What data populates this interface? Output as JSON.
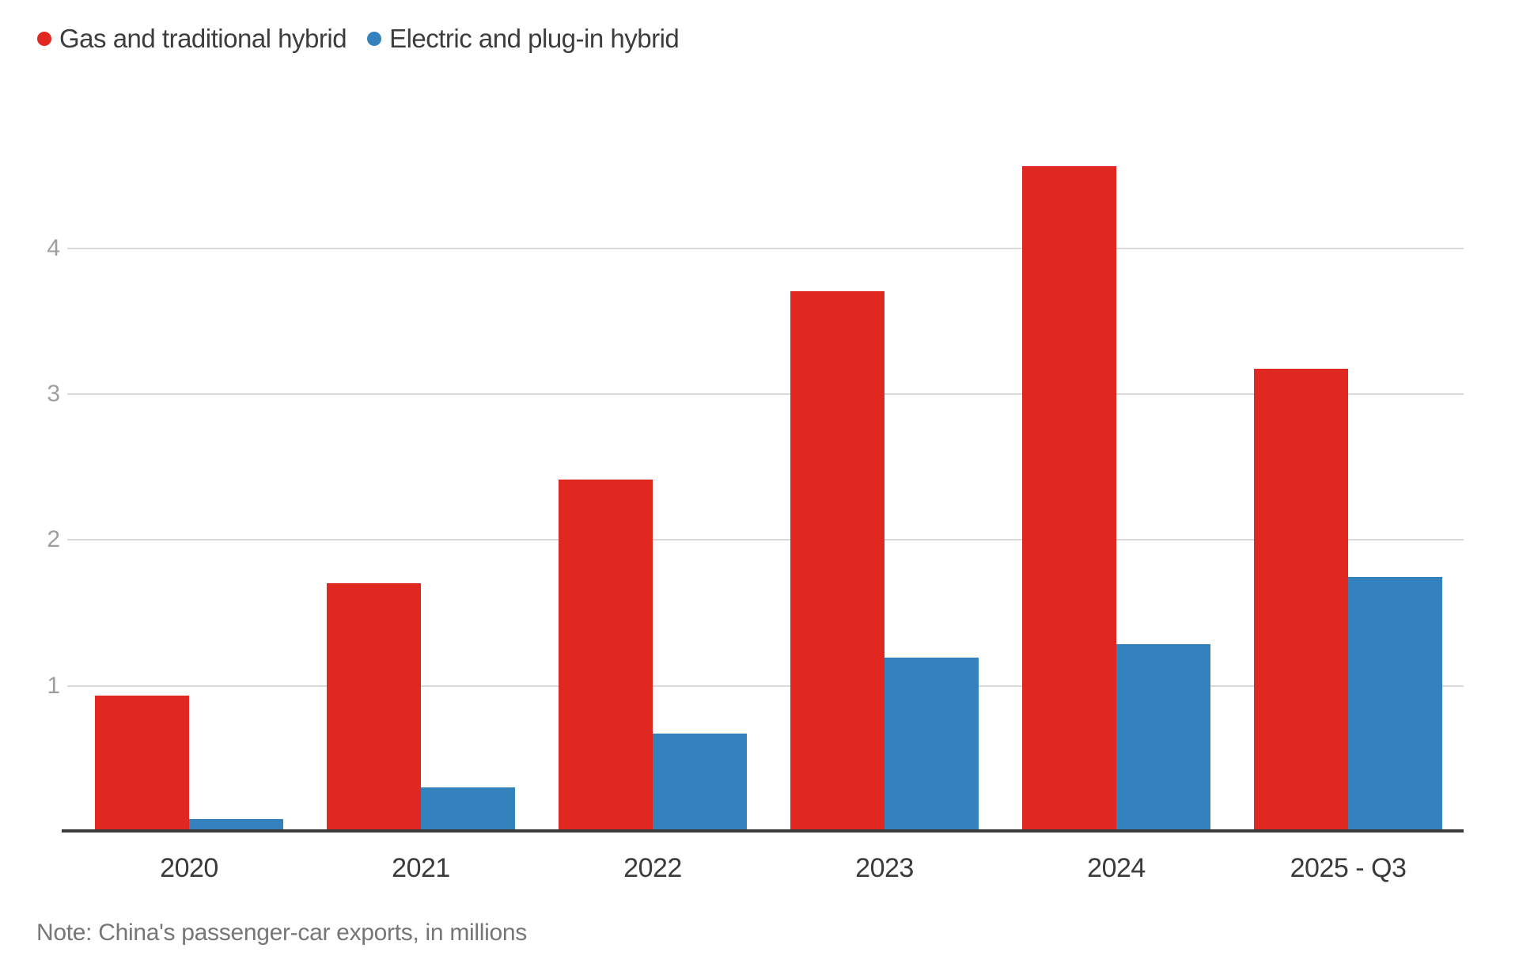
{
  "legend": {
    "items": [
      {
        "label": "Gas and traditional hybrid",
        "color": "#e02820"
      },
      {
        "label": "Electric and plug-in hybrid",
        "color": "#3381bd"
      }
    ]
  },
  "note": "Note: China's passenger-car exports, in millions",
  "chart_data": {
    "type": "bar",
    "title": "",
    "xlabel": "",
    "ylabel": "",
    "categories": [
      "2020",
      "2021",
      "2022",
      "2023",
      "2024",
      "2025 - Q3"
    ],
    "series": [
      {
        "name": "Gas and traditional hybrid",
        "color": "#e02820",
        "values": [
          0.93,
          1.7,
          2.41,
          3.7,
          4.56,
          3.17
        ]
      },
      {
        "name": "Electric and plug-in hybrid",
        "color": "#3381bd",
        "values": [
          0.08,
          0.3,
          0.67,
          1.19,
          1.28,
          1.74
        ]
      }
    ],
    "yticks": [
      1,
      2,
      3,
      4
    ],
    "ylim": [
      0,
      4.9
    ],
    "grid": true,
    "legend_position": "top-left",
    "note": "Note: China's passenger-car exports, in millions",
    "units": "millions of vehicles"
  }
}
